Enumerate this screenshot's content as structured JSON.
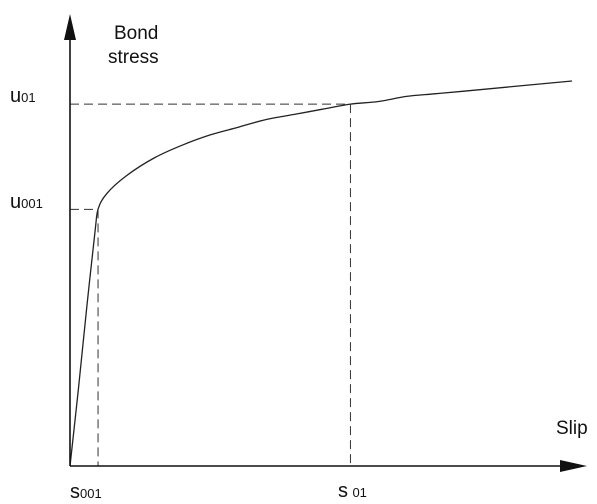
{
  "chart_data": {
    "type": "line",
    "xlabel": "Slip",
    "ylabel_line1": "Bond",
    "ylabel_line2": "stress",
    "x_ticks": [
      {
        "main": "s",
        "sub": "001"
      },
      {
        "main": "s",
        "sub": "01"
      }
    ],
    "y_ticks": [
      {
        "main": "u",
        "sub": "01"
      },
      {
        "main": "u",
        "sub": "001"
      }
    ],
    "series": [
      {
        "x": [
          0,
          0.3,
          0.6,
          0.9,
          1.0,
          1.3,
          2.0,
          3.0,
          4.0,
          5.0,
          6.0,
          7.0,
          8.0,
          9.0,
          10.0,
          11.0,
          12.0,
          13.0,
          14.0,
          17.9
        ],
        "y": [
          0,
          0.3,
          0.62,
          0.92,
          1.0,
          1.06,
          1.13,
          1.2,
          1.25,
          1.29,
          1.32,
          1.35,
          1.37,
          1.39,
          1.41,
          1.42,
          1.44,
          1.45,
          1.46,
          1.5
        ]
      }
    ],
    "reference_points": [
      {
        "x": 1.0,
        "y": 1.0
      },
      {
        "x": 10.0,
        "y": 1.41
      }
    ],
    "xlim": [
      0,
      18
    ],
    "ylim": [
      0,
      1.5
    ],
    "grid": false,
    "legend": "none",
    "line_color": "#222222",
    "axis_color": "#111111",
    "guide_color": "#333333"
  }
}
